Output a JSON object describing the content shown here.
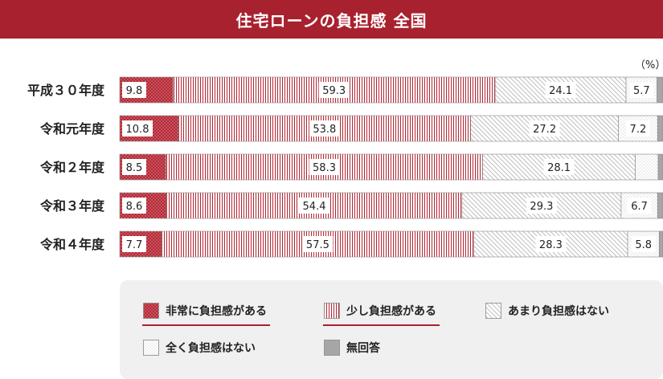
{
  "title": "住宅ローンの負担感 全国",
  "unit_label": "（%）",
  "colors": {
    "title_bg": "#a8212e",
    "heavy": "#b32633",
    "some": "#b32633",
    "not_much": "#bdbdbd",
    "none": "#c8c8c8",
    "no_answer": "#a6a6a6"
  },
  "chart_data": {
    "type": "bar",
    "orientation": "horizontal",
    "stacked": true,
    "categories": [
      "平成３０年度",
      "令和元年度",
      "令和２年度",
      "令和３年度",
      "令和４年度"
    ],
    "series": [
      {
        "name": "非常に負担感がある",
        "values": [
          9.8,
          10.8,
          8.5,
          8.6,
          7.7
        ],
        "pattern": "dots-dark"
      },
      {
        "name": "少し負担感がある",
        "values": [
          59.3,
          53.8,
          58.3,
          54.4,
          57.5
        ],
        "pattern": "vertical-lines"
      },
      {
        "name": "あまり負担感はない",
        "values": [
          24.1,
          27.2,
          28.1,
          29.3,
          28.3
        ],
        "pattern": "diagonal-lines"
      },
      {
        "name": "全く負担感はない",
        "values": [
          5.7,
          7.2,
          4.2,
          6.7,
          5.8
        ],
        "pattern": "dots-light"
      },
      {
        "name": "無回答",
        "values": [
          1.1,
          1.0,
          0.9,
          1.0,
          0.7
        ],
        "pattern": "solid-gray"
      }
    ],
    "value_labels": [
      [
        "9.8",
        "59.3",
        "24.1",
        "5.7",
        ""
      ],
      [
        "10.8",
        "53.8",
        "27.2",
        "7.2",
        ""
      ],
      [
        "8.5",
        "58.3",
        "28.1",
        "",
        ""
      ],
      [
        "8.6",
        "54.4",
        "29.3",
        "6.7",
        ""
      ],
      [
        "7.7",
        "57.5",
        "28.3",
        "5.8",
        ""
      ]
    ],
    "xlim": [
      0,
      100
    ],
    "legend_position": "bottom"
  }
}
